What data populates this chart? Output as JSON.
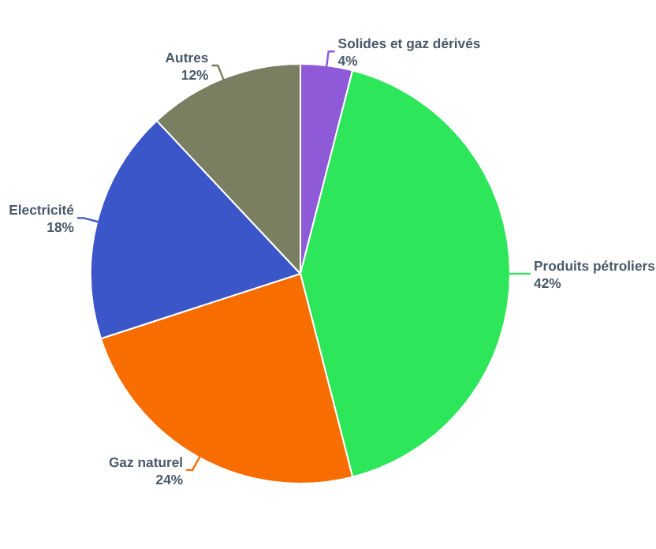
{
  "chart_data": {
    "type": "pie",
    "categories": [
      "Solides et gaz dérivés",
      "Produits pétroliers",
      "Gaz naturel",
      "Electricité",
      "Autres"
    ],
    "values": [
      4,
      42,
      24,
      18,
      12
    ],
    "value_labels": [
      "4%",
      "42%",
      "24%",
      "18%",
      "12%"
    ],
    "colors": [
      "#8e5ad8",
      "#2ee65a",
      "#f76d00",
      "#3a56c8",
      "#7a7f62"
    ]
  }
}
